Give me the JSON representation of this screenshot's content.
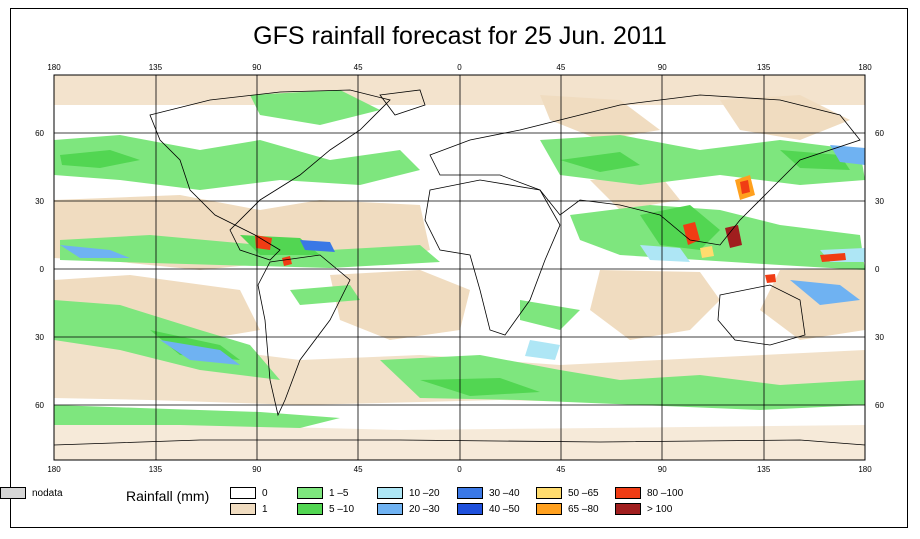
{
  "title": "GFS rainfall forecast for 25 Jun. 2011",
  "lon_ticks": [
    "180",
    "135",
    "90",
    "45",
    "0",
    "45",
    "90",
    "135",
    "180"
  ],
  "lat_ticks": [
    "60",
    "30",
    "0",
    "30",
    "60"
  ],
  "legend": {
    "title": "Rainfall (mm)",
    "items": [
      {
        "label": "0",
        "color": "#ffffff"
      },
      {
        "label": "1",
        "color": "#f0dcc0"
      },
      {
        "label": "1 –5",
        "color": "#7ee67e"
      },
      {
        "label": "5 –10",
        "color": "#52d652"
      },
      {
        "label": "10 –20",
        "color": "#aee6f5"
      },
      {
        "label": "20 –30",
        "color": "#6fb2f2"
      },
      {
        "label": "30 –40",
        "color": "#3a78e6"
      },
      {
        "label": "40 –50",
        "color": "#1e50dc"
      },
      {
        "label": "50 –65",
        "color": "#ffdc6e"
      },
      {
        "label": "65 –80",
        "color": "#ffa01e"
      },
      {
        "label": "80 –100",
        "color": "#f03c14"
      },
      {
        "label": "> 100",
        "color": "#a01e1e"
      },
      {
        "label": "nodata",
        "color": "#d6d6d6"
      }
    ]
  }
}
